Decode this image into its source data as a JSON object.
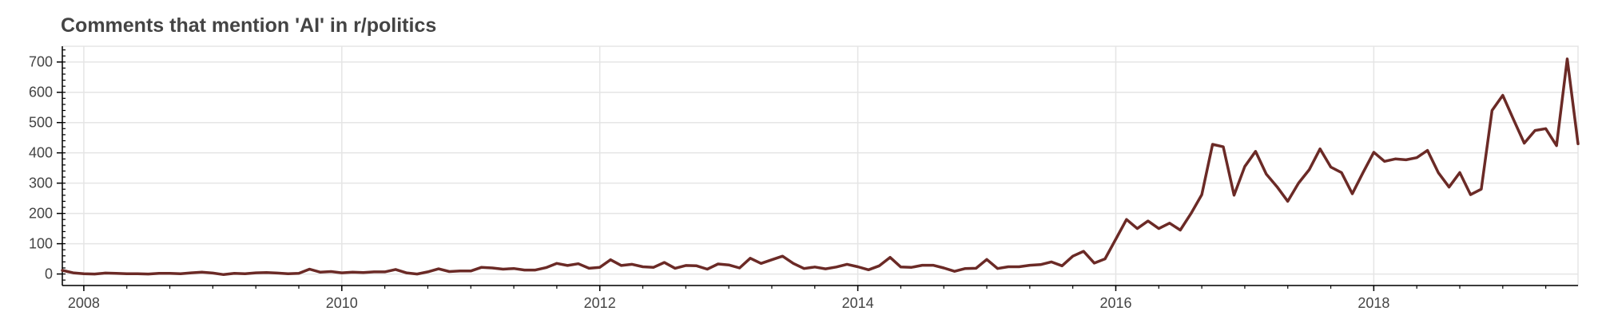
{
  "chart_data": {
    "type": "line",
    "title": "Comments that mention 'AI' in r/politics",
    "xlabel": "",
    "ylabel": "",
    "x_range": [
      "2007-11-01",
      "2019-08-01"
    ],
    "ylim": [
      -38,
      752
    ],
    "x_tick_labels": [
      "2008",
      "2010",
      "2012",
      "2014",
      "2016",
      "2018"
    ],
    "y_tick_labels": [
      "0",
      "100",
      "200",
      "300",
      "400",
      "500",
      "600",
      "700"
    ],
    "grid": true,
    "legend": "none",
    "line_color": "#6b2a26",
    "series": [
      {
        "x": [
          "2007-11",
          "2007-12",
          "2008-01",
          "2008-02",
          "2008-03",
          "2008-04",
          "2008-05",
          "2008-06",
          "2008-07",
          "2008-08",
          "2008-09",
          "2008-10",
          "2008-11",
          "2008-12",
          "2009-01",
          "2009-02",
          "2009-03",
          "2009-04",
          "2009-05",
          "2009-06",
          "2009-07",
          "2009-08",
          "2009-09",
          "2009-10",
          "2009-11",
          "2009-12",
          "2010-01",
          "2010-02",
          "2010-03",
          "2010-04",
          "2010-05",
          "2010-06",
          "2010-07",
          "2010-08",
          "2010-09",
          "2010-10",
          "2010-11",
          "2010-12",
          "2011-01",
          "2011-02",
          "2011-03",
          "2011-04",
          "2011-05",
          "2011-06",
          "2011-07",
          "2011-08",
          "2011-09",
          "2011-10",
          "2011-11",
          "2011-12",
          "2012-01",
          "2012-02",
          "2012-03",
          "2012-04",
          "2012-05",
          "2012-06",
          "2012-07",
          "2012-08",
          "2012-09",
          "2012-10",
          "2012-11",
          "2012-12",
          "2013-01",
          "2013-02",
          "2013-03",
          "2013-04",
          "2013-05",
          "2013-06",
          "2013-07",
          "2013-08",
          "2013-09",
          "2013-10",
          "2013-11",
          "2013-12",
          "2014-01",
          "2014-02",
          "2014-03",
          "2014-04",
          "2014-05",
          "2014-06",
          "2014-07",
          "2014-08",
          "2014-09",
          "2014-10",
          "2014-11",
          "2014-12",
          "2015-01",
          "2015-02",
          "2015-03",
          "2015-04",
          "2015-05",
          "2015-06",
          "2015-07",
          "2015-08",
          "2015-09",
          "2015-10",
          "2015-11",
          "2015-12",
          "2016-01",
          "2016-02",
          "2016-03",
          "2016-04",
          "2016-05",
          "2016-06",
          "2016-07",
          "2016-08",
          "2016-09",
          "2016-10",
          "2016-11",
          "2016-12",
          "2017-01",
          "2017-02",
          "2017-03",
          "2017-04",
          "2017-05",
          "2017-06",
          "2017-07",
          "2017-08",
          "2017-09",
          "2017-10",
          "2017-11",
          "2017-12",
          "2018-01",
          "2018-02",
          "2018-03",
          "2018-04",
          "2018-05",
          "2018-06",
          "2018-07",
          "2018-08",
          "2018-09",
          "2018-10",
          "2018-11",
          "2018-12",
          "2019-01",
          "2019-02",
          "2019-03",
          "2019-04",
          "2019-05",
          "2019-06",
          "2019-07",
          "2019-08"
        ],
        "y": [
          12,
          4,
          1,
          0,
          3,
          2,
          1,
          1,
          0,
          2,
          2,
          1,
          4,
          6,
          3,
          -2,
          2,
          1,
          4,
          5,
          3,
          1,
          2,
          16,
          6,
          8,
          4,
          6,
          5,
          7,
          7,
          15,
          4,
          0,
          7,
          17,
          8,
          10,
          10,
          22,
          20,
          16,
          18,
          13,
          13,
          21,
          35,
          28,
          34,
          19,
          22,
          47,
          28,
          32,
          24,
          22,
          38,
          19,
          28,
          27,
          16,
          33,
          30,
          20,
          52,
          35,
          47,
          59,
          35,
          18,
          23,
          17,
          23,
          32,
          24,
          14,
          27,
          55,
          23,
          22,
          29,
          29,
          20,
          9,
          18,
          19,
          48,
          18,
          24,
          24,
          29,
          31,
          40,
          27,
          59,
          75,
          36,
          50,
          115,
          180,
          150,
          175,
          150,
          168,
          145,
          200,
          262,
          428,
          420,
          260,
          355,
          405,
          330,
          288,
          240,
          300,
          345,
          413,
          353,
          335,
          265,
          335,
          402,
          372,
          380,
          377,
          384,
          408,
          335,
          287,
          335,
          262,
          280,
          540,
          590,
          510,
          432,
          474,
          480,
          424,
          710,
          430
        ]
      }
    ]
  }
}
